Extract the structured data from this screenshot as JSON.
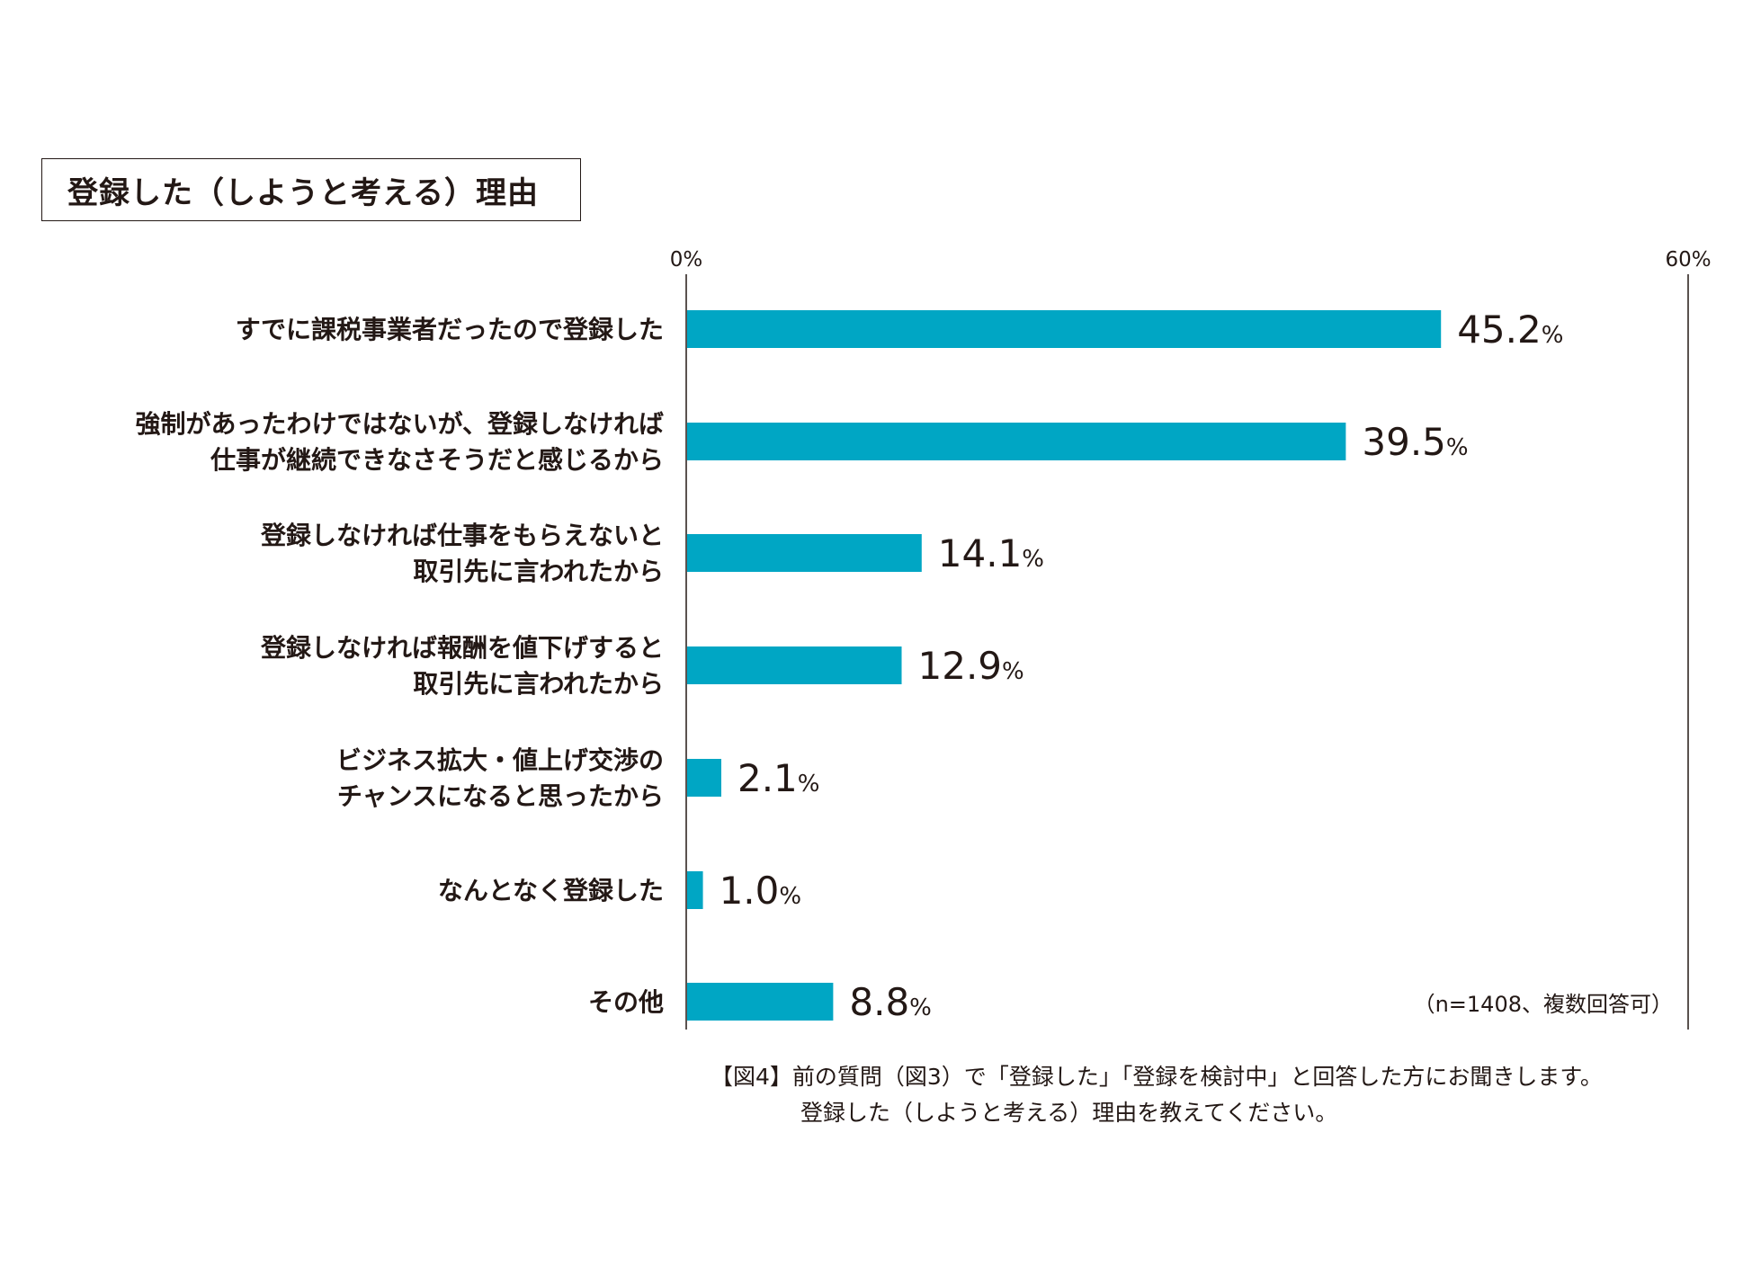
{
  "chart_data": {
    "type": "bar",
    "orientation": "horizontal",
    "title": "登録した（しようと考える）理由",
    "categories": [
      [
        "すでに課税事業者だったので登録した"
      ],
      [
        "強制があったわけではないが、登録しなければ",
        "仕事が継続できなさそうだと感じるから"
      ],
      [
        "登録しなければ仕事をもらえないと",
        "取引先に言われたから"
      ],
      [
        "登録しなければ報酬を値下げすると",
        "取引先に言われたから"
      ],
      [
        "ビジネス拡大・値上げ交渉の",
        "チャンスになると思ったから"
      ],
      [
        "なんとなく登録した"
      ],
      [
        "その他"
      ]
    ],
    "values": [
      45.2,
      39.5,
      14.1,
      12.9,
      2.1,
      1.0,
      8.8
    ],
    "value_labels": [
      "45.2",
      "39.5",
      "14.1",
      "12.9",
      "2.1",
      "1.0",
      "8.8"
    ],
    "unit": "%",
    "xlim": [
      0,
      60
    ],
    "tick_labels": [
      "0%",
      "60%"
    ],
    "bar_color": "#00a6c4",
    "axis_color": "#231815",
    "note": "（n=1408、複数回答可）"
  },
  "caption": {
    "line1": "【図4】前の質問（図3）で「登録した」「登録を検討中」と回答した方にお聞きします。",
    "line2": "登録した（しようと考える）理由を教えてください。"
  }
}
